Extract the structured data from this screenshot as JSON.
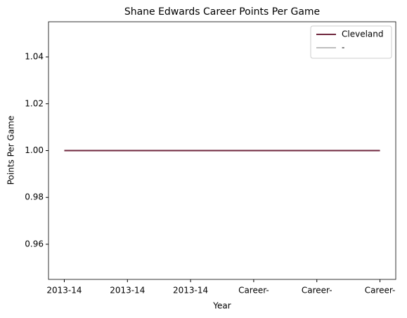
{
  "chart_data": {
    "type": "line",
    "title": "Shane Edwards  Career Points Per Game",
    "xlabel": "Year",
    "ylabel": "Points Per Game",
    "categories": [
      "2013-14",
      "2013-14",
      "2013-14",
      "Career-",
      "Career-",
      "Career-"
    ],
    "series": [
      {
        "name": "Cleveland",
        "color": "#6f263d",
        "values": [
          1,
          1,
          1,
          1,
          1,
          1
        ]
      },
      {
        "name": "-",
        "color": "#bebebe",
        "values": [
          null,
          null,
          null,
          null,
          null,
          null
        ]
      }
    ],
    "ylim": [
      0.945,
      1.055
    ],
    "yticks": [
      0.96,
      0.98,
      {
        "value": 1,
        "label": "1.00"
      },
      1.02,
      1.04
    ],
    "legend": "upper right",
    "grid": false
  }
}
